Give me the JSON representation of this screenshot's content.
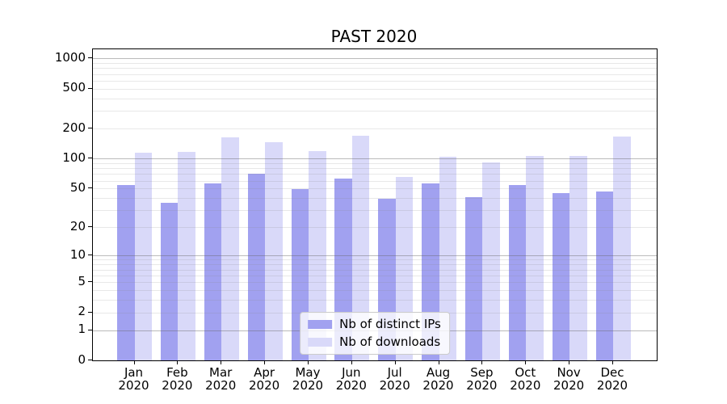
{
  "chart_data": {
    "type": "bar",
    "title": "PAST 2020",
    "categories": [
      "Jan",
      "Feb",
      "Mar",
      "Apr",
      "May",
      "Jun",
      "Jul",
      "Aug",
      "Sep",
      "Oct",
      "Nov",
      "Dec"
    ],
    "year": "2020",
    "series": [
      {
        "name": "Nb of distinct IPs",
        "color": "#a1a1f0",
        "values": [
          54,
          36,
          56,
          70,
          49,
          63,
          39,
          56,
          41,
          54,
          45,
          47
        ]
      },
      {
        "name": "Nb of downloads",
        "color": "#d9d9f9",
        "values": [
          114,
          117,
          163,
          145,
          119,
          171,
          66,
          105,
          92,
          107,
          106,
          167
        ]
      }
    ],
    "xlabel": "",
    "ylabel": "",
    "yscale": "symlog",
    "ylim": [
      0,
      1230
    ],
    "yticks": [
      0,
      1,
      2,
      5,
      10,
      20,
      50,
      100,
      200,
      500,
      1000
    ],
    "grid": true,
    "legend_position": "lower center"
  },
  "colors": {
    "axis": "#000000",
    "major_grid": "#c4c4c4",
    "minor_grid": "#ebebeb",
    "legend_border": "#cccccc",
    "background": "#ffffff"
  }
}
